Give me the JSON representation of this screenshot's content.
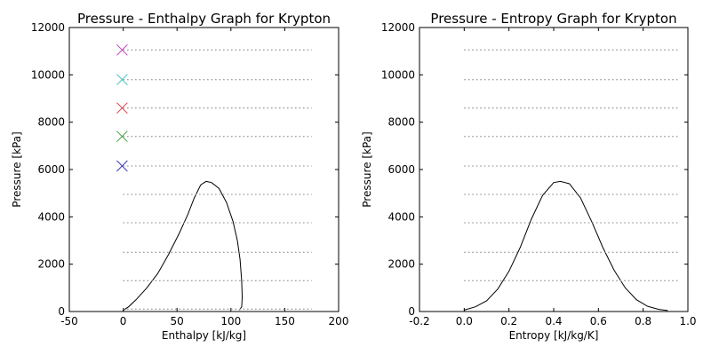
{
  "chart_data": [
    {
      "type": "line",
      "title": "Pressure - Enthalpy Graph for Krypton",
      "xlabel": "Enthalpy [kJ/kg]",
      "ylabel": "Pressure [kPa]",
      "xlim": [
        -50,
        200
      ],
      "ylim": [
        0,
        12000
      ],
      "xticks": [
        -50,
        0,
        50,
        100,
        150,
        200
      ],
      "yticks": [
        0,
        2000,
        4000,
        6000,
        8000,
        10000,
        12000
      ],
      "grid": false,
      "series": [
        {
          "kind": "saturation_dome",
          "color": "#000000",
          "points": [
            [
              0,
              50
            ],
            [
              5,
              200
            ],
            [
              12,
              500
            ],
            [
              22,
              1000
            ],
            [
              32,
              1600
            ],
            [
              42,
              2400
            ],
            [
              52,
              3300
            ],
            [
              60,
              4100
            ],
            [
              66,
              4800
            ],
            [
              72,
              5350
            ],
            [
              77,
              5500
            ],
            [
              82,
              5450
            ],
            [
              89,
              5200
            ],
            [
              96,
              4600
            ],
            [
              102,
              3800
            ],
            [
              106,
              3000
            ],
            [
              108.5,
              2200
            ],
            [
              110,
              1300
            ],
            [
              110.5,
              600
            ],
            [
              110,
              200
            ],
            [
              108,
              60
            ]
          ]
        },
        {
          "kind": "isobars",
          "color": "#999999",
          "style": "dotted",
          "x_range": [
            0,
            175
          ],
          "pressures": [
            100,
            1300,
            2500,
            3750,
            4950,
            6150,
            7400,
            8600,
            9800,
            11050
          ]
        },
        {
          "kind": "markers",
          "style": "x",
          "points": [
            {
              "x": -1,
              "y": 6150,
              "color": "#3f3fbf"
            },
            {
              "x": -1,
              "y": 7400,
              "color": "#3f9f3f"
            },
            {
              "x": -1,
              "y": 8600,
              "color": "#df3f3f"
            },
            {
              "x": -1,
              "y": 9800,
              "color": "#3fbfbf"
            },
            {
              "x": -1,
              "y": 11050,
              "color": "#bf3fbf"
            }
          ]
        }
      ]
    },
    {
      "type": "line",
      "title": "Pressure - Entropy Graph for Krypton",
      "xlabel": "Entropy [kJ/kg/K]",
      "ylabel": "Pressure [kPa]",
      "xlim": [
        -0.2,
        1.0
      ],
      "ylim": [
        0,
        12000
      ],
      "xticks": [
        -0.2,
        0.0,
        0.2,
        0.4,
        0.6,
        0.8,
        1.0
      ],
      "yticks": [
        0,
        2000,
        4000,
        6000,
        8000,
        10000,
        12000
      ],
      "grid": false,
      "series": [
        {
          "kind": "saturation_dome",
          "color": "#000000",
          "points": [
            [
              0.0,
              60
            ],
            [
              0.05,
              200
            ],
            [
              0.1,
              450
            ],
            [
              0.15,
              950
            ],
            [
              0.2,
              1700
            ],
            [
              0.25,
              2700
            ],
            [
              0.3,
              3900
            ],
            [
              0.35,
              4900
            ],
            [
              0.4,
              5450
            ],
            [
              0.43,
              5500
            ],
            [
              0.47,
              5400
            ],
            [
              0.52,
              4800
            ],
            [
              0.57,
              3800
            ],
            [
              0.62,
              2700
            ],
            [
              0.67,
              1750
            ],
            [
              0.72,
              1000
            ],
            [
              0.77,
              500
            ],
            [
              0.82,
              220
            ],
            [
              0.87,
              90
            ],
            [
              0.91,
              40
            ]
          ]
        },
        {
          "kind": "isobars",
          "color": "#999999",
          "style": "dotted",
          "x_range": [
            0.0,
            0.96
          ],
          "pressures": [
            1300,
            2500,
            3750,
            4950,
            6150,
            7400,
            8600,
            9800,
            11050
          ]
        }
      ]
    }
  ]
}
